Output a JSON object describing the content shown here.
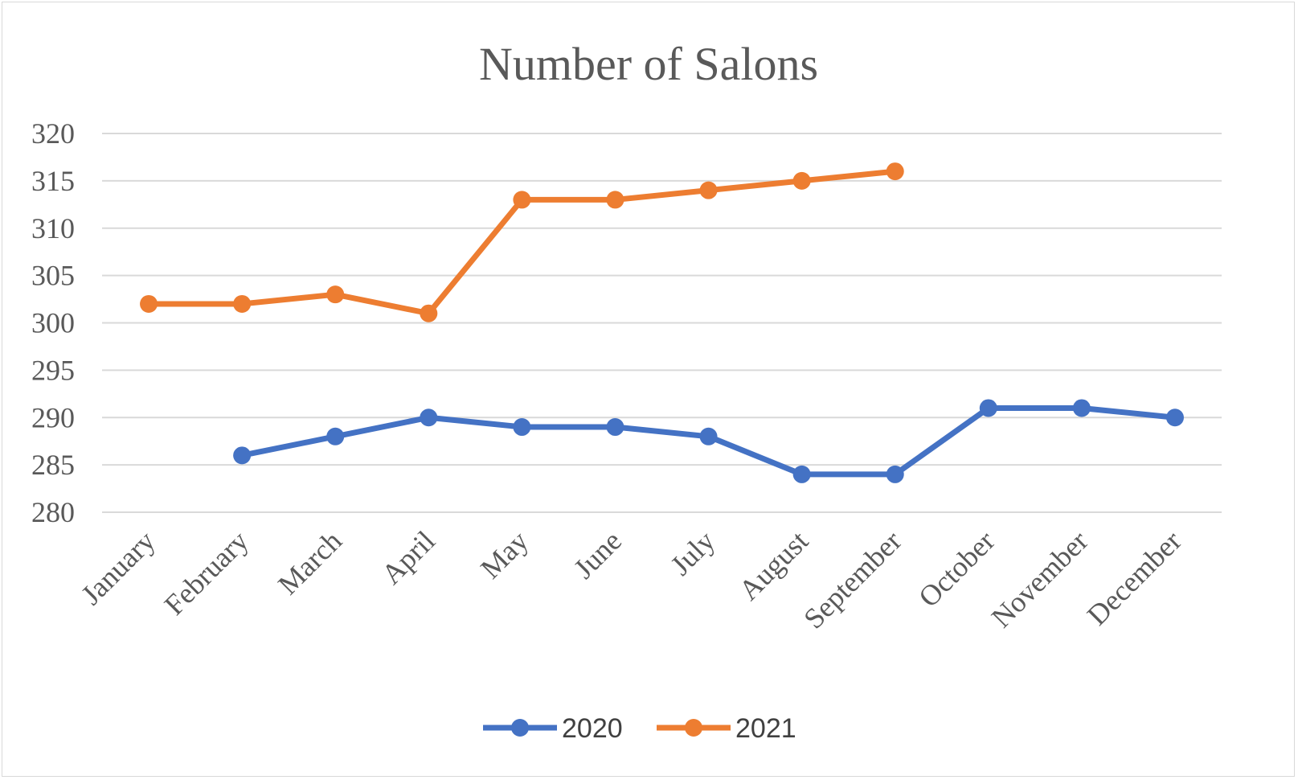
{
  "chart_data": {
    "type": "line",
    "title": "Number of Salons",
    "xlabel": "",
    "ylabel": "",
    "categories": [
      "January",
      "February",
      "March",
      "April",
      "May",
      "June",
      "July",
      "August",
      "September",
      "October",
      "November",
      "December"
    ],
    "y_ticks": [
      "280",
      "285",
      "290",
      "295",
      "300",
      "305",
      "310",
      "315",
      "320"
    ],
    "ylim": [
      280,
      320
    ],
    "grid": true,
    "legend_position": "bottom",
    "series": [
      {
        "name": "2020",
        "color": "#4472C4",
        "values": [
          null,
          286,
          288,
          290,
          289,
          289,
          288,
          284,
          284,
          291,
          291,
          290
        ]
      },
      {
        "name": "2021",
        "color": "#ED7D31",
        "values": [
          302,
          302,
          303,
          301,
          313,
          313,
          314,
          315,
          316,
          null,
          null,
          null
        ]
      }
    ]
  }
}
